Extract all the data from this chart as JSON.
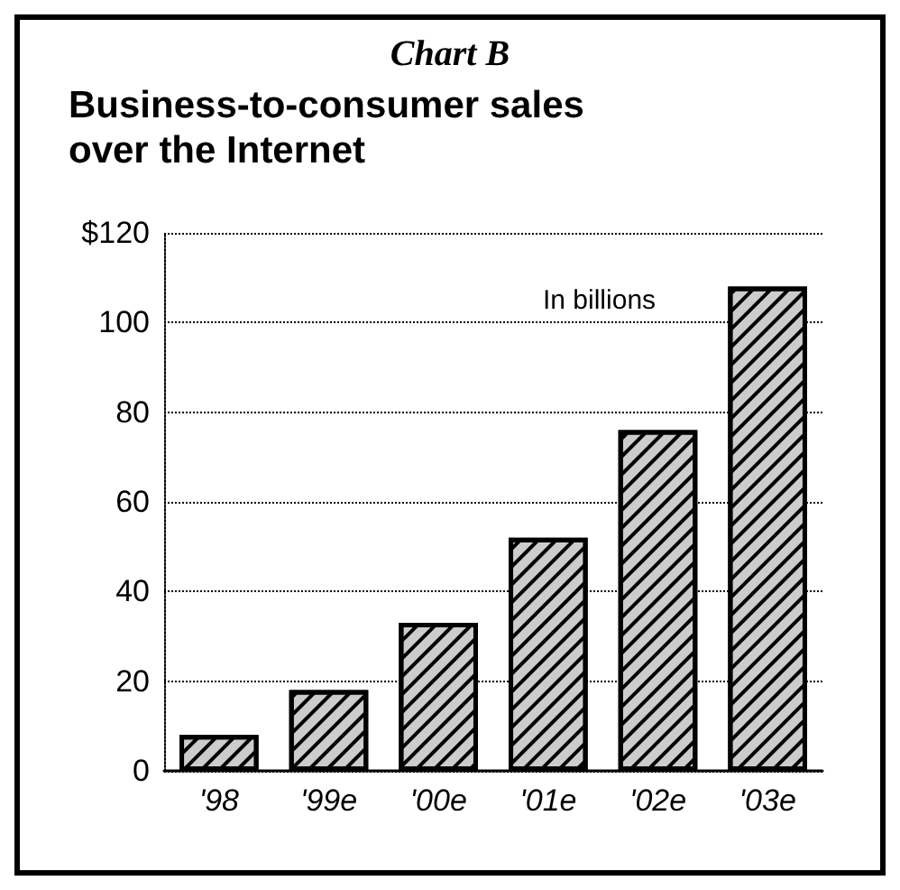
{
  "chart_data": {
    "type": "bar",
    "title": "Chart B",
    "subtitle": "Business-to-consumer sales\nover the Internet",
    "annotations": [
      "In billions"
    ],
    "categories": [
      "'98",
      "'99e",
      "'00e",
      "'01e",
      "'02e",
      "'03e"
    ],
    "values": [
      8,
      18,
      33,
      52,
      76,
      108
    ],
    "color": "#cccccc",
    "ylim": [
      0,
      120
    ],
    "yticks": [
      0,
      20,
      40,
      60,
      80,
      100,
      {
        "value": 120,
        "label": "$120"
      }
    ],
    "grid": "y"
  }
}
